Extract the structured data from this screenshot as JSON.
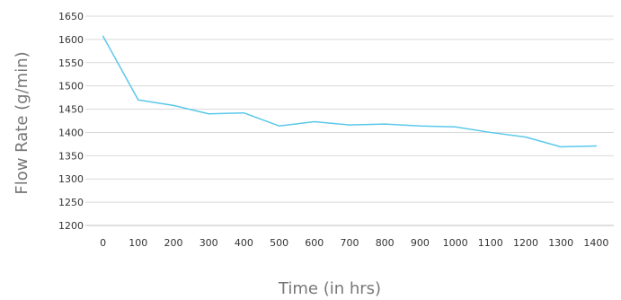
{
  "chart_data": {
    "type": "line",
    "title": "",
    "xlabel": "Time (in hrs)",
    "ylabel": "Flow Rate (g/min)",
    "x_ticks": [
      0,
      100,
      200,
      300,
      400,
      500,
      600,
      700,
      800,
      900,
      1000,
      1100,
      1200,
      1300,
      1400
    ],
    "y_ticks": [
      1200,
      1250,
      1300,
      1350,
      1400,
      1450,
      1500,
      1550,
      1600,
      1650
    ],
    "xlim": [
      -50,
      1450
    ],
    "ylim": [
      1200,
      1650
    ],
    "grid": "horizontal",
    "legend": "none",
    "series": [
      {
        "color": "#5bc8ea",
        "x": [
          0,
          100,
          200,
          300,
          400,
          500,
          600,
          700,
          800,
          900,
          1000,
          1100,
          1200,
          1300,
          1400
        ],
        "y": [
          1607,
          1470,
          1458,
          1440,
          1442,
          1414,
          1423,
          1416,
          1418,
          1414,
          1412,
          1400,
          1390,
          1369,
          1371
        ]
      }
    ]
  }
}
